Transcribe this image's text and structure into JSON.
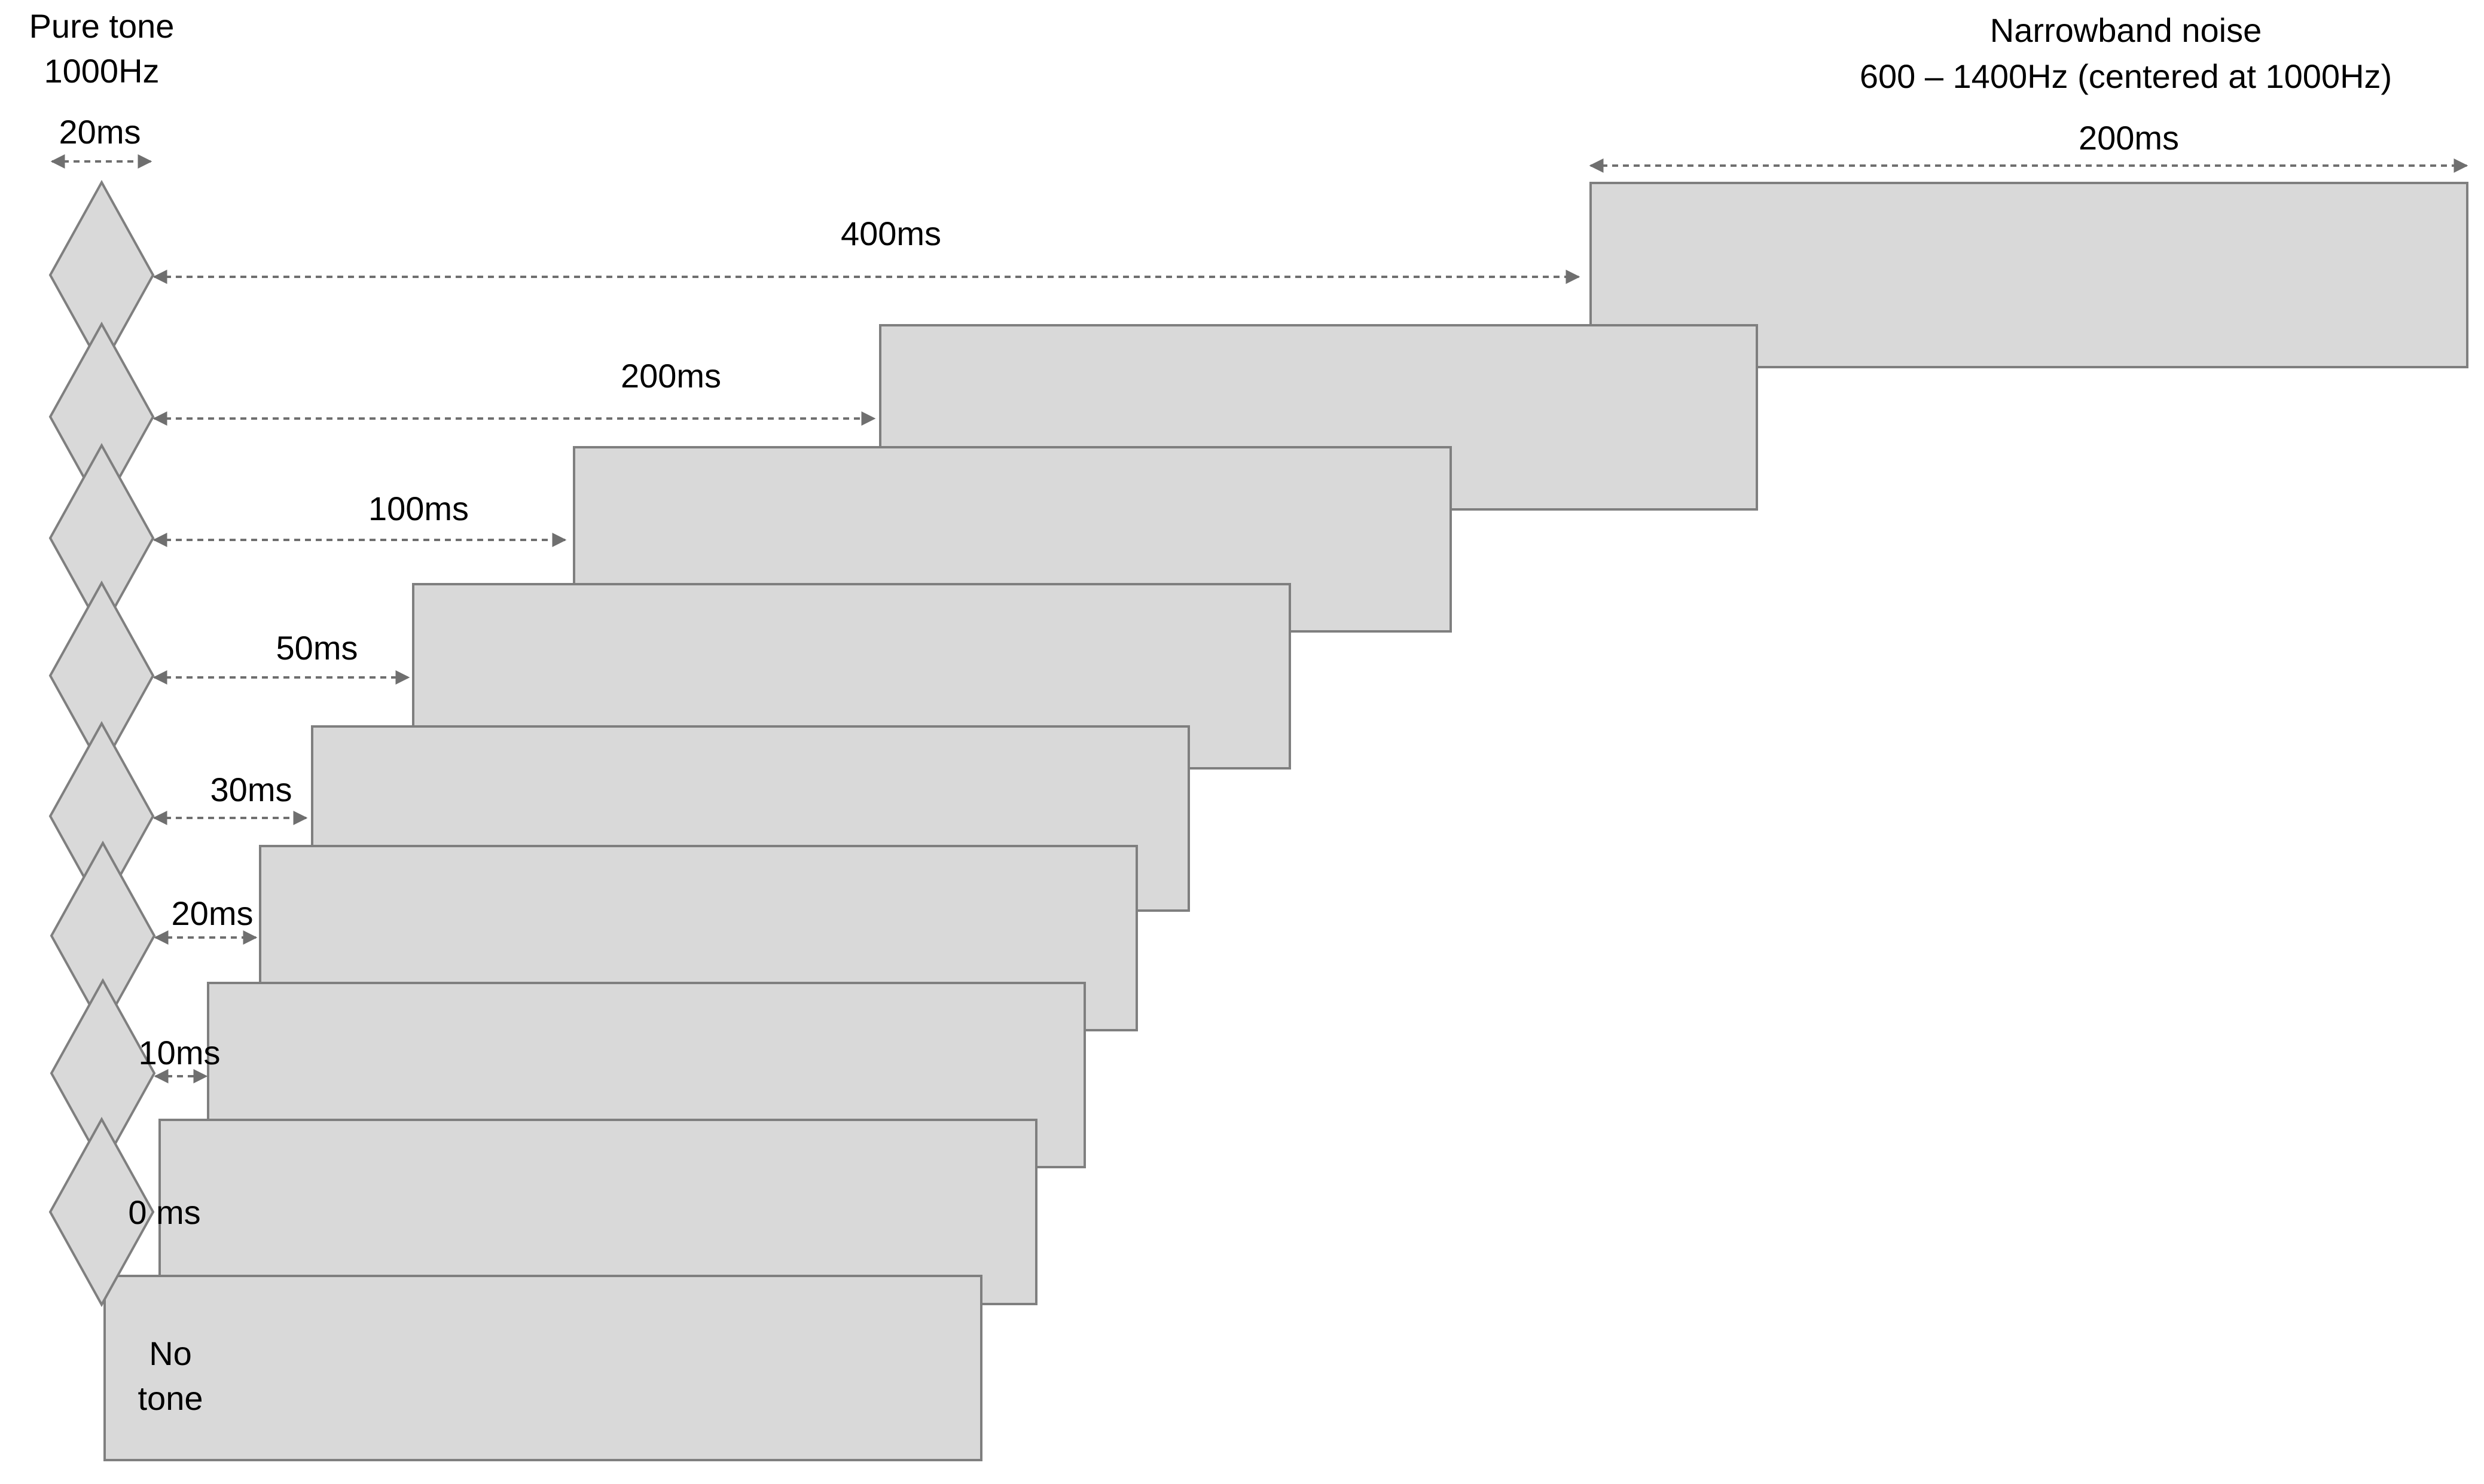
{
  "pure_tone": {
    "title_line1": "Pure tone",
    "title_line2": "1000Hz",
    "duration": "20ms"
  },
  "noise": {
    "title_line1": "Narrowband noise",
    "title_line2": "600 – 1400Hz  (centered at 1000Hz)",
    "duration": "200ms"
  },
  "gaps": [
    {
      "label": "400ms"
    },
    {
      "label": "200ms"
    },
    {
      "label": "100ms"
    },
    {
      "label": "50ms"
    },
    {
      "label": "30ms"
    },
    {
      "label": "20ms"
    },
    {
      "label": "10ms"
    },
    {
      "label": "0 ms"
    }
  ],
  "no_tone": {
    "line1": "No",
    "line2": "tone"
  },
  "colors": {
    "box_fill": "#d9d9d9",
    "box_stroke": "#7f7f7f",
    "arrow": "#6f6f6f",
    "text": "#000000"
  }
}
